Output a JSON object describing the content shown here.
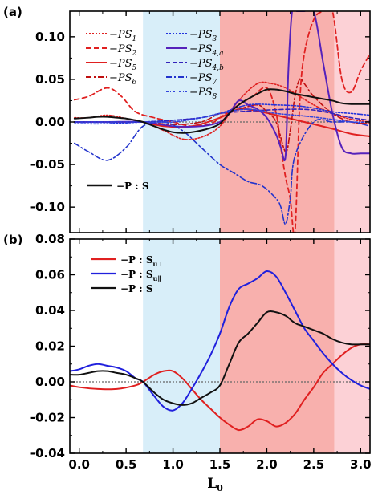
{
  "chart_data": [
    {
      "panel_label": "(a)",
      "type": "line",
      "xlim": [
        -0.1,
        3.1
      ],
      "ylim": [
        -0.13,
        0.13
      ],
      "yticks": [
        -0.1,
        -0.05,
        0.0,
        0.05,
        0.1
      ],
      "ytick_labels": [
        "-0.10",
        "-0.05",
        "0.00",
        "0.05",
        "0.10"
      ],
      "shaded_regions": [
        {
          "from": 0.68,
          "to": 1.5,
          "color": "#d8eef9"
        },
        {
          "from": 1.5,
          "to": 2.72,
          "color": "#f8b0ad"
        },
        {
          "from": 2.72,
          "to": 3.1,
          "color": "#fcd1d6"
        }
      ],
      "zero_line": true,
      "series": [
        {
          "name": "−PS1",
          "color": "#e02020",
          "dash": "2,2",
          "width": 1.6,
          "x": [
            -0.05,
            0.1,
            0.3,
            0.5,
            0.68,
            0.9,
            1.1,
            1.3,
            1.5,
            1.7,
            1.9,
            2.05,
            2.2,
            2.35,
            2.5,
            2.7,
            2.9,
            3.1
          ],
          "y": [
            0.005,
            0.005,
            0.008,
            0.004,
            0.0,
            -0.01,
            -0.02,
            -0.018,
            -0.005,
            0.025,
            0.045,
            0.045,
            0.04,
            0.03,
            0.02,
            0.01,
            0.003,
            0.0
          ]
        },
        {
          "name": "−PS2",
          "color": "#e02020",
          "dash": "6,4",
          "width": 1.8,
          "x": [
            -0.05,
            0.1,
            0.3,
            0.45,
            0.6,
            0.8,
            1.0,
            1.2,
            1.4,
            1.5,
            1.7,
            1.85,
            2.0,
            2.1,
            2.15,
            2.2,
            2.25,
            2.3,
            2.35,
            2.4,
            2.5,
            2.6,
            2.7,
            2.8,
            2.9,
            3.0,
            3.1
          ],
          "y": [
            0.026,
            0.03,
            0.04,
            0.03,
            0.012,
            0.005,
            0.0,
            -0.005,
            -0.002,
            0.005,
            0.02,
            0.03,
            0.04,
            0.01,
            -0.03,
            -0.065,
            -0.09,
            -0.13,
            0.02,
            0.08,
            0.12,
            0.13,
            0.13,
            0.05,
            0.035,
            0.06,
            0.08
          ]
        },
        {
          "name": "−PS5",
          "color": "#e02020",
          "dash": "",
          "width": 2,
          "x": [
            -0.05,
            0.2,
            0.5,
            0.68,
            0.9,
            1.2,
            1.5,
            1.7,
            1.9,
            2.1,
            2.4,
            2.7,
            2.9,
            3.1
          ],
          "y": [
            0.0,
            0.0,
            0.0,
            0.0,
            -0.005,
            -0.005,
            0.005,
            0.015,
            0.013,
            0.008,
            0.0,
            -0.008,
            -0.014,
            -0.017
          ]
        },
        {
          "name": "−PS6",
          "color": "#c01010",
          "dash": "7,3,2,3",
          "width": 1.6,
          "x": [
            -0.05,
            0.3,
            0.68,
            1.0,
            1.3,
            1.5,
            1.7,
            1.9,
            2.0,
            2.1,
            2.2,
            2.25,
            2.3,
            2.35,
            2.4,
            2.5,
            2.7,
            2.9,
            3.1
          ],
          "y": [
            0.0,
            0.0,
            0.0,
            -0.003,
            0.0,
            0.01,
            0.015,
            0.02,
            0.012,
            0.0,
            -0.035,
            -0.01,
            0.03,
            0.05,
            0.045,
            0.03,
            0.01,
            0.0,
            -0.002
          ]
        },
        {
          "name": "−PS3",
          "color": "#2233dd",
          "dash": "2,2",
          "width": 1.6,
          "x": [
            -0.05,
            0.3,
            0.68,
            1.0,
            1.3,
            1.5,
            1.8,
            2.1,
            2.4,
            2.7,
            2.9,
            3.1
          ],
          "y": [
            -0.002,
            -0.002,
            0.0,
            0.002,
            0.005,
            0.01,
            0.02,
            0.02,
            0.018,
            0.012,
            0.01,
            0.008
          ]
        },
        {
          "name": "−PS4,a",
          "color": "#5522bb",
          "dash": "",
          "width": 2,
          "x": [
            -0.05,
            0.3,
            0.68,
            1.0,
            1.3,
            1.5,
            1.6,
            1.7,
            1.8,
            1.9,
            2.0,
            2.1,
            2.15,
            2.2,
            2.23,
            2.27,
            2.32,
            2.4,
            2.5,
            2.6,
            2.7,
            2.8,
            2.9,
            3.0,
            3.1
          ],
          "y": [
            0.0,
            0.0,
            0.0,
            -0.005,
            -0.005,
            0.0,
            0.01,
            0.025,
            0.02,
            0.015,
            0.005,
            -0.015,
            -0.03,
            -0.04,
            0.06,
            0.13,
            0.13,
            0.13,
            0.13,
            0.07,
            0.01,
            -0.03,
            -0.037,
            -0.037,
            -0.037
          ]
        },
        {
          "name": "−PS4,b",
          "color": "#3322bb",
          "dash": "5,3",
          "width": 1.6,
          "x": [
            -0.05,
            0.3,
            0.68,
            1.0,
            1.3,
            1.5,
            1.7,
            2.0,
            2.3,
            2.5,
            2.7,
            2.9,
            3.1
          ],
          "y": [
            0.0,
            0.0,
            0.0,
            0.002,
            0.005,
            0.01,
            0.012,
            0.014,
            0.015,
            0.014,
            0.01,
            0.005,
            0.002
          ]
        },
        {
          "name": "−PS7",
          "color": "#2233cc",
          "dash": "7,3,2,3",
          "width": 1.6,
          "x": [
            -0.05,
            0.1,
            0.3,
            0.5,
            0.68,
            0.9,
            1.1,
            1.3,
            1.5,
            1.65,
            1.8,
            1.95,
            2.1,
            2.15,
            2.2,
            2.25,
            2.3,
            2.5,
            2.7,
            2.9,
            3.0,
            3.1
          ],
          "y": [
            -0.025,
            -0.035,
            -0.045,
            -0.03,
            -0.005,
            0.0,
            -0.01,
            -0.03,
            -0.05,
            -0.06,
            -0.07,
            -0.075,
            -0.09,
            -0.1,
            -0.12,
            -0.09,
            -0.04,
            0.0,
            0.0,
            0.0,
            -0.002,
            -0.005
          ]
        },
        {
          "name": "−PS8",
          "color": "#3344dd",
          "dash": "3,2,1,2",
          "width": 1.6,
          "x": [
            -0.05,
            0.3,
            0.68,
            1.0,
            1.3,
            1.5,
            1.8,
            2.1,
            2.4,
            2.7,
            2.9,
            3.1
          ],
          "y": [
            0.0,
            0.0,
            0.0,
            0.0,
            0.005,
            0.01,
            0.015,
            0.01,
            0.007,
            0.003,
            0.0,
            0.0
          ]
        },
        {
          "name": "−P:S",
          "color": "#111111",
          "dash": "",
          "width": 2,
          "x": [
            -0.05,
            0.1,
            0.2,
            0.3,
            0.4,
            0.5,
            0.6,
            0.68,
            0.8,
            0.9,
            1.0,
            1.1,
            1.2,
            1.3,
            1.4,
            1.5,
            1.6,
            1.7,
            1.8,
            1.9,
            2.0,
            2.1,
            2.2,
            2.3,
            2.4,
            2.5,
            2.6,
            2.7,
            2.8,
            2.9,
            3.0,
            3.1
          ],
          "y": [
            0.004,
            0.005,
            0.006,
            0.006,
            0.005,
            0.004,
            0.002,
            0.0,
            -0.005,
            -0.009,
            -0.012,
            -0.013,
            -0.012,
            -0.01,
            -0.007,
            -0.002,
            0.01,
            0.02,
            0.027,
            0.033,
            0.038,
            0.038,
            0.036,
            0.033,
            0.031,
            0.029,
            0.027,
            0.025,
            0.022,
            0.021,
            0.021,
            0.021
          ]
        }
      ],
      "legend": {
        "entries": [
          {
            "label": "−PS",
            "sub": "1",
            "color": "#e02020",
            "dash": "2,2"
          },
          {
            "label": "−PS",
            "sub": "2",
            "color": "#e02020",
            "dash": "6,4"
          },
          {
            "label": "−PS",
            "sub": "5",
            "color": "#e02020",
            "dash": ""
          },
          {
            "label": "−PS",
            "sub": "6",
            "color": "#c01010",
            "dash": "7,3,2,3"
          },
          {
            "label": "−PS",
            "sub": "3",
            "color": "#2233dd",
            "dash": "2,2"
          },
          {
            "label": "−PS",
            "sub": "4,a",
            "color": "#5522bb",
            "dash": ""
          },
          {
            "label": "−PS",
            "sub": "4,b",
            "color": "#3322bb",
            "dash": "5,3"
          },
          {
            "label": "−PS",
            "sub": "7",
            "color": "#2233cc",
            "dash": "7,3,2,3"
          },
          {
            "label": "−PS",
            "sub": "8",
            "color": "#3344dd",
            "dash": "3,2,1,2"
          }
        ],
        "ps_entry": {
          "label": "−P : S",
          "color": "#111111"
        }
      }
    },
    {
      "panel_label": "(b)",
      "type": "line",
      "xlim": [
        -0.1,
        3.1
      ],
      "ylim": [
        -0.04,
        0.08
      ],
      "xticks": [
        0.0,
        0.5,
        1.0,
        1.5,
        2.0,
        2.5,
        3.0
      ],
      "xtick_labels": [
        "0.0",
        "0.5",
        "1.0",
        "1.5",
        "2.0",
        "2.5",
        "3.0"
      ],
      "yticks": [
        -0.04,
        -0.02,
        0.0,
        0.02,
        0.04,
        0.06,
        0.08
      ],
      "ytick_labels": [
        "-0.04",
        "-0.02",
        "0.00",
        "0.02",
        "0.04",
        "0.06",
        "0.08"
      ],
      "xlabel": "L",
      "xlabel_sub": "0",
      "shaded_regions": [
        {
          "from": 0.68,
          "to": 1.5,
          "color": "#d8eef9"
        },
        {
          "from": 1.5,
          "to": 2.72,
          "color": "#f8b0ad"
        },
        {
          "from": 2.72,
          "to": 3.1,
          "color": "#fcd1d6"
        }
      ],
      "zero_line": true,
      "series": [
        {
          "name": "−P : S_u⊥",
          "color": "#e02020",
          "x": [
            -0.1,
            0.0,
            0.2,
            0.4,
            0.6,
            0.68,
            0.8,
            0.9,
            1.0,
            1.1,
            1.2,
            1.3,
            1.4,
            1.5,
            1.6,
            1.7,
            1.8,
            1.9,
            2.0,
            2.1,
            2.2,
            2.3,
            2.4,
            2.5,
            2.6,
            2.7,
            2.8,
            2.9,
            3.0,
            3.1
          ],
          "y": [
            -0.002,
            -0.003,
            -0.004,
            -0.004,
            -0.002,
            0.0,
            0.004,
            0.006,
            0.006,
            0.002,
            -0.004,
            -0.01,
            -0.015,
            -0.02,
            -0.024,
            -0.027,
            -0.025,
            -0.021,
            -0.022,
            -0.025,
            -0.023,
            -0.018,
            -0.01,
            -0.003,
            0.005,
            0.01,
            0.015,
            0.019,
            0.021,
            0.021
          ]
        },
        {
          "name": "−P : S_u∥",
          "color": "#2020dd",
          "x": [
            -0.1,
            0.0,
            0.1,
            0.2,
            0.3,
            0.4,
            0.5,
            0.6,
            0.68,
            0.8,
            0.9,
            1.0,
            1.1,
            1.2,
            1.3,
            1.4,
            1.5,
            1.6,
            1.7,
            1.8,
            1.9,
            2.0,
            2.1,
            2.2,
            2.3,
            2.4,
            2.5,
            2.6,
            2.7,
            2.8,
            2.9,
            3.0,
            3.1
          ],
          "y": [
            0.006,
            0.007,
            0.009,
            0.01,
            0.009,
            0.008,
            0.006,
            0.002,
            0.0,
            -0.008,
            -0.014,
            -0.016,
            -0.012,
            -0.004,
            0.005,
            0.015,
            0.027,
            0.042,
            0.052,
            0.055,
            0.058,
            0.062,
            0.059,
            0.05,
            0.04,
            0.03,
            0.023,
            0.016,
            0.01,
            0.005,
            0.001,
            -0.002,
            -0.004
          ]
        },
        {
          "name": "−P : S",
          "color": "#111111",
          "x": [
            -0.1,
            0.0,
            0.1,
            0.2,
            0.3,
            0.4,
            0.5,
            0.6,
            0.68,
            0.8,
            0.9,
            1.0,
            1.1,
            1.2,
            1.3,
            1.4,
            1.5,
            1.6,
            1.7,
            1.8,
            1.9,
            2.0,
            2.1,
            2.2,
            2.3,
            2.4,
            2.5,
            2.6,
            2.7,
            2.8,
            2.9,
            3.0,
            3.1
          ],
          "y": [
            0.004,
            0.004,
            0.005,
            0.006,
            0.006,
            0.005,
            0.004,
            0.002,
            0.0,
            -0.006,
            -0.01,
            -0.012,
            -0.013,
            -0.012,
            -0.009,
            -0.006,
            -0.002,
            0.01,
            0.022,
            0.027,
            0.033,
            0.039,
            0.039,
            0.037,
            0.033,
            0.031,
            0.029,
            0.027,
            0.024,
            0.022,
            0.021,
            0.021,
            0.021
          ]
        }
      ],
      "legend": {
        "entries": [
          {
            "label": "−P : S",
            "sub": "u⊥",
            "color": "#e02020"
          },
          {
            "label": "−P : S",
            "sub": "u∥",
            "color": "#2020dd"
          },
          {
            "label": "−P : S",
            "sub": "",
            "color": "#111111"
          }
        ]
      }
    }
  ]
}
